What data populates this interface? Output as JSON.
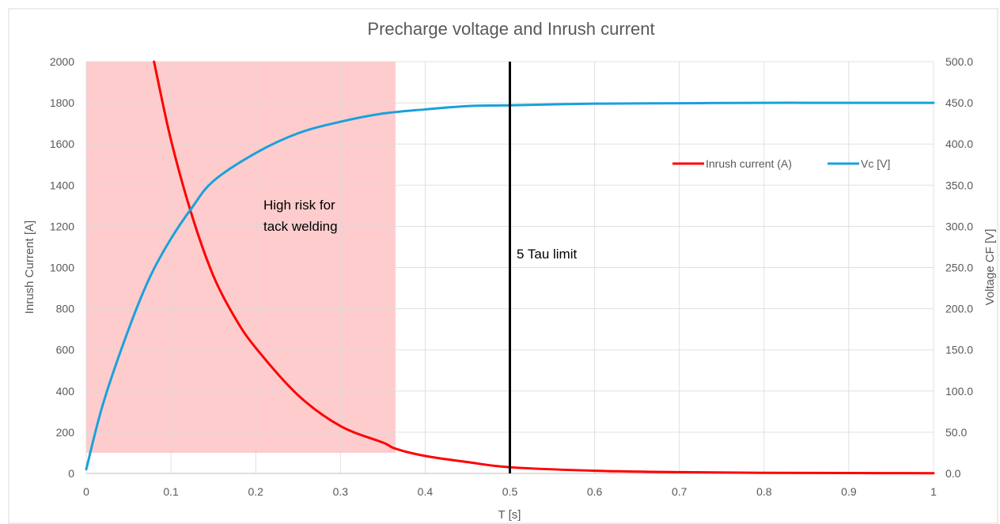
{
  "chart_data": {
    "type": "line",
    "title": "Precharge voltage and Inrush current",
    "xlabel": "T [s]",
    "ylabel": "Inrush Current [A]",
    "y2label": "Voltage CF [V]",
    "xlim": [
      0,
      1
    ],
    "ylim": [
      0,
      2000
    ],
    "y2lim": [
      0,
      500
    ],
    "xticks": [
      "0",
      "0.1",
      "0.2",
      "0.3",
      "0.4",
      "0.5",
      "0.6",
      "0.7",
      "0.8",
      "0.9",
      "1"
    ],
    "yticks": [
      "0",
      "200",
      "400",
      "600",
      "800",
      "1000",
      "1200",
      "1400",
      "1600",
      "1800",
      "2000"
    ],
    "y2ticks": [
      "0.0",
      "50.0",
      "100.0",
      "150.0",
      "200.0",
      "250.0",
      "300.0",
      "350.0",
      "400.0",
      "450.0",
      "500.0"
    ],
    "grid": true,
    "legend_position": "right",
    "series": [
      {
        "name": "Inrush current (A)",
        "axis": "left",
        "color": "#ff0000",
        "x": [
          0.08,
          0.1,
          0.125,
          0.15,
          0.175,
          0.2,
          0.25,
          0.3,
          0.35,
          0.365,
          0.4,
          0.45,
          0.5,
          0.6,
          0.7,
          0.8,
          0.9,
          1.0
        ],
        "y": [
          2000,
          1620,
          1250,
          960,
          760,
          610,
          380,
          230,
          150,
          120,
          85,
          55,
          30,
          13,
          6,
          3,
          2,
          1
        ]
      },
      {
        "name": "Vc [V]",
        "axis": "right",
        "color": "#1aa1db",
        "x": [
          0,
          0.02,
          0.05,
          0.075,
          0.1,
          0.125,
          0.15,
          0.2,
          0.25,
          0.3,
          0.35,
          0.4,
          0.45,
          0.5,
          0.6,
          0.7,
          0.8,
          0.9,
          1.0
        ],
        "y": [
          5,
          85,
          175,
          238,
          285,
          323,
          355,
          389,
          413,
          427,
          437,
          442,
          446,
          447,
          449,
          449.5,
          450,
          450,
          450
        ]
      }
    ],
    "annotations": {
      "risk_zone": {
        "label_line1": "High risk for",
        "label_line2": "tack welding",
        "x_from": 0,
        "x_to": 0.365,
        "y_from": 100,
        "y_to": 2000,
        "color": "#ffcccd"
      },
      "tau_line": {
        "label": "5 Tau limit",
        "x": 0.5,
        "color": "#000000"
      }
    }
  }
}
